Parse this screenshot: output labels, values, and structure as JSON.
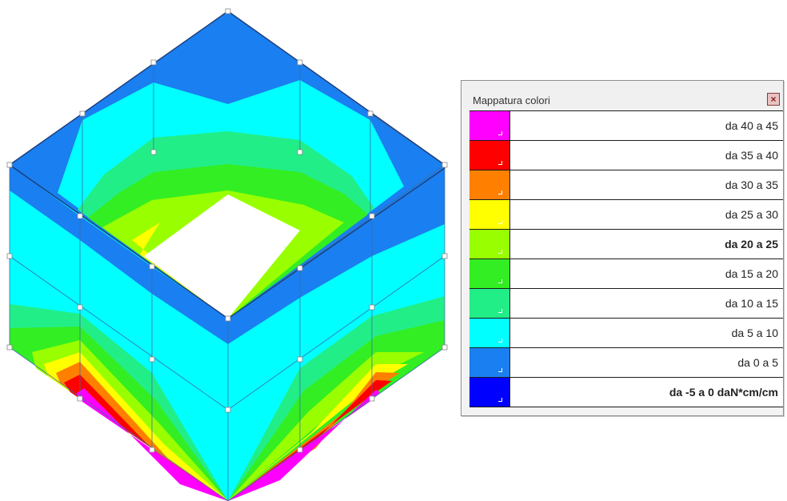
{
  "legend": {
    "title": "Mappatura colori",
    "close_symbol": "×",
    "rows": [
      {
        "label": "da 40 a 45",
        "color": "#ff00ff",
        "bold": false
      },
      {
        "label": "da 35 a 40",
        "color": "#ff0000",
        "bold": false
      },
      {
        "label": "da 30 a 35",
        "color": "#ff8000",
        "bold": false
      },
      {
        "label": "da 25 a 30",
        "color": "#ffff00",
        "bold": false
      },
      {
        "label": "da 20 a 25",
        "color": "#99ff00",
        "bold": true
      },
      {
        "label": "da 15 a 20",
        "color": "#33ee22",
        "bold": false
      },
      {
        "label": "da 10 a 15",
        "color": "#22ee88",
        "bold": false
      },
      {
        "label": "da 5 a 10",
        "color": "#00ffff",
        "bold": false
      },
      {
        "label": "da 0 a 5",
        "color": "#1a7ff0",
        "bold": false
      },
      {
        "label": "da -5 a 0 daN*cm/cm",
        "color": "#0000ff",
        "bold": true
      }
    ]
  },
  "colors": {
    "band_magenta": "#ff00ff",
    "band_red": "#ff0000",
    "band_orange": "#ff8000",
    "band_yellow": "#ffff00",
    "band_lime": "#99ff00",
    "band_green": "#33ee22",
    "band_spring": "#22ee88",
    "band_cyan": "#00ffff",
    "band_blue": "#1a7ff0"
  }
}
